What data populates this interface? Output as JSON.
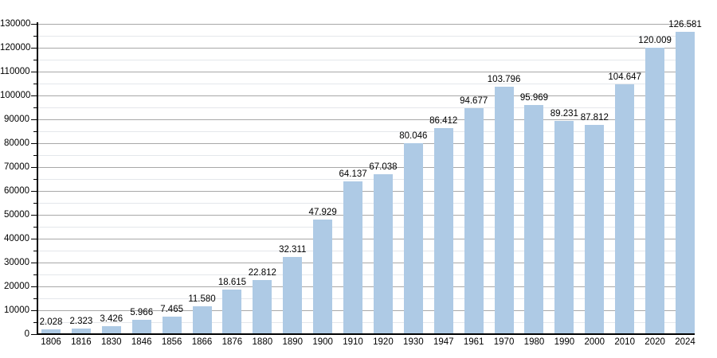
{
  "chart_data": {
    "type": "bar",
    "title": "",
    "xlabel": "",
    "ylabel": "",
    "categories": [
      "1806",
      "1816",
      "1830",
      "1846",
      "1856",
      "1866",
      "1876",
      "1880",
      "1890",
      "1900",
      "1910",
      "1920",
      "1930",
      "1947",
      "1961",
      "1970",
      "1980",
      "1990",
      "2000",
      "2010",
      "2020",
      "2024"
    ],
    "values": [
      2028,
      2323,
      3426,
      5966,
      7465,
      11580,
      18615,
      22812,
      32311,
      47929,
      64137,
      67038,
      80046,
      86412,
      94677,
      103796,
      95969,
      89231,
      87812,
      104647,
      120009,
      126581
    ],
    "value_labels": [
      "2.028",
      "2.323",
      "3.426",
      "5.966",
      "7.465",
      "11.580",
      "18.615",
      "22.812",
      "32.311",
      "47.929",
      "64.137",
      "67.038",
      "80.046",
      "86.412",
      "94.677",
      "103.796",
      "95.969",
      "89.231",
      "87.812",
      "104.647",
      "120.009",
      "126.581"
    ],
    "ylim": [
      0,
      130000
    ],
    "y_major_step": 10000,
    "y_minor_step": 5000,
    "y_tick_labels": [
      "0",
      "10000",
      "20000",
      "30000",
      "40000",
      "50000",
      "60000",
      "70000",
      "80000",
      "90000",
      "100000",
      "110000",
      "120000",
      "130000"
    ],
    "grid": true,
    "legend": false,
    "colors": {
      "background": "#ffffff",
      "bar_fill": "#aecae5",
      "major_grid": "#a8a8a8",
      "minor_grid": "#e4e7eb",
      "axis": "#000000",
      "text": "#000000"
    }
  }
}
